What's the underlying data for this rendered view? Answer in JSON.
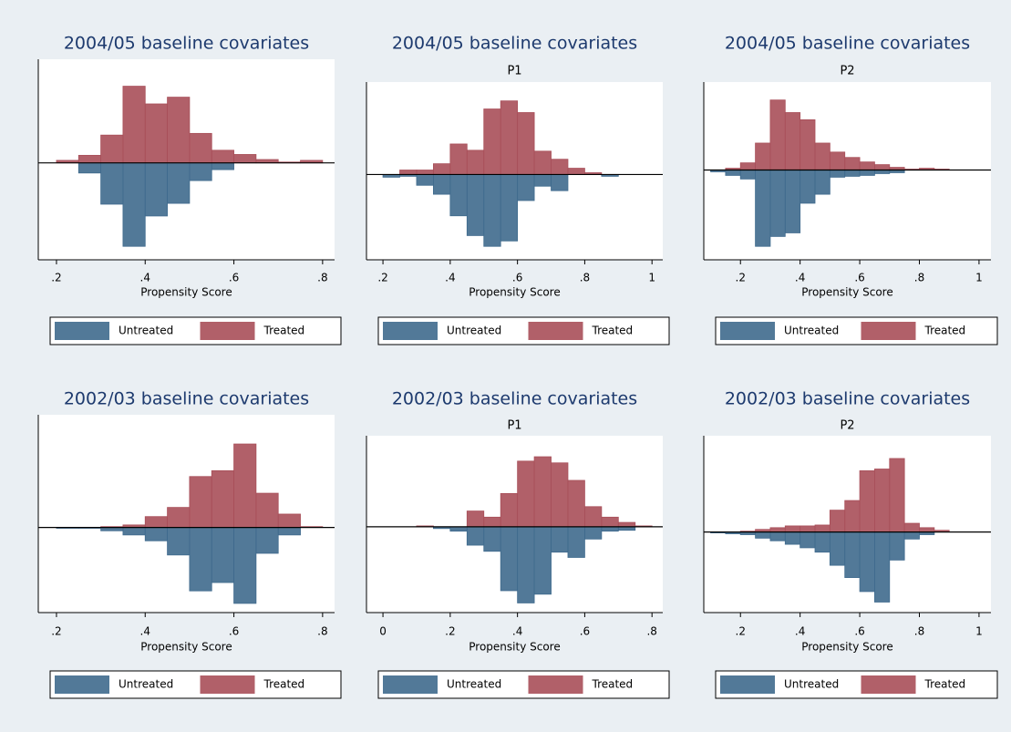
{
  "chart_data": [
    {
      "type": "histogram",
      "title": "2004/05 baseline covariates",
      "x_label": "Propensity Score",
      "bins": [
        0.2,
        0.25,
        0.3,
        0.35,
        0.4,
        0.45,
        0.5,
        0.55,
        0.6,
        0.65,
        0.7,
        0.75,
        0.8
      ],
      "series": [
        {
          "name": "Untreated",
          "color": "#3f6a8d",
          "values": [
            0,
            -12,
            -49,
            -99,
            -63,
            -48,
            -21,
            -8,
            0,
            0,
            0,
            0
          ]
        },
        {
          "name": "Treated",
          "color": "#a84f59",
          "values": [
            3,
            9,
            33,
            91,
            70,
            78,
            35,
            15,
            10,
            4,
            1,
            3
          ]
        }
      ],
      "xlim": [
        0.159,
        0.827
      ],
      "xticks": [
        {
          "value": 0.2,
          "label": ".2"
        },
        {
          "value": 0.4,
          "label": ".4"
        },
        {
          "value": 0.6,
          "label": ".6"
        },
        {
          "value": 0.8,
          "label": ".8"
        }
      ],
      "ylim": [
        -115,
        123
      ]
    },
    {
      "type": "histogram",
      "title": "2004/05 baseline covariates",
      "subtitle": "P1",
      "x_label": "Propensity Score",
      "bins": [
        0.2,
        0.25,
        0.3,
        0.35,
        0.4,
        0.45,
        0.5,
        0.55,
        0.6,
        0.65,
        0.7,
        0.75,
        0.8,
        0.85,
        0.9
      ],
      "series": [
        {
          "name": "Untreated",
          "color": "#3f6a8d",
          "values": [
            -3,
            -2,
            -12,
            -22,
            -46,
            -68,
            -80,
            -74,
            -29,
            -13,
            -18,
            0,
            0,
            -2
          ]
        },
        {
          "name": "Treated",
          "color": "#a84f59",
          "values": [
            0,
            5,
            5,
            12,
            34,
            27,
            73,
            82,
            69,
            26,
            17,
            7,
            2,
            0
          ]
        }
      ],
      "xlim": [
        0.151,
        1.032
      ],
      "xticks": [
        {
          "value": 0.2,
          "label": ".2"
        },
        {
          "value": 0.4,
          "label": ".4"
        },
        {
          "value": 0.6,
          "label": ".6"
        },
        {
          "value": 0.8,
          "label": ".8"
        },
        1
      ],
      "ylim": [
        -95,
        103
      ]
    },
    {
      "type": "histogram",
      "title": "2004/05 baseline covariates",
      "subtitle": "P2",
      "x_label": "Propensity Score",
      "bins": [
        0.1,
        0.15,
        0.2,
        0.25,
        0.3,
        0.35,
        0.4,
        0.45,
        0.5,
        0.55,
        0.6,
        0.65,
        0.7,
        0.75,
        0.8,
        0.85,
        0.9
      ],
      "series": [
        {
          "name": "Untreated",
          "color": "#3f6a8d",
          "values": [
            -2,
            -6,
            -10,
            -85,
            -74,
            -70,
            -37,
            -27,
            -8,
            -7,
            -6,
            -4,
            -3,
            0,
            0,
            0
          ]
        },
        {
          "name": "Treated",
          "color": "#a84f59",
          "values": [
            0,
            2,
            8,
            30,
            78,
            64,
            56,
            30,
            20,
            14,
            9,
            6,
            3,
            1,
            2,
            1
          ]
        }
      ],
      "xlim": [
        0.077,
        1.04
      ],
      "xticks": [
        {
          "value": 0.2,
          "label": ".2"
        },
        {
          "value": 0.4,
          "label": ".4"
        },
        {
          "value": 0.6,
          "label": ".6"
        },
        {
          "value": 0.8,
          "label": ".8"
        },
        1
      ],
      "ylim": [
        -100,
        98
      ]
    },
    {
      "type": "histogram",
      "title": "2002/03 baseline covariates",
      "x_label": "Propensity Score",
      "bins": [
        0.2,
        0.25,
        0.3,
        0.35,
        0.4,
        0.45,
        0.5,
        0.55,
        0.6,
        0.65,
        0.7,
        0.75,
        0.8
      ],
      "series": [
        {
          "name": "Untreated",
          "color": "#3f6a8d",
          "values": [
            -1,
            -1,
            -4,
            -9,
            -16,
            -33,
            -76,
            -66,
            -91,
            -31,
            -9,
            0
          ]
        },
        {
          "name": "Treated",
          "color": "#a84f59",
          "values": [
            0,
            0,
            1,
            3,
            13,
            24,
            61,
            68,
            100,
            41,
            16,
            1
          ]
        }
      ],
      "xlim": [
        0.159,
        0.827
      ],
      "xticks": [
        {
          "value": 0.2,
          "label": ".2"
        },
        {
          "value": 0.4,
          "label": ".4"
        },
        {
          "value": 0.6,
          "label": ".6"
        },
        {
          "value": 0.8,
          "label": ".8"
        }
      ],
      "ylim": [
        -102,
        135
      ]
    },
    {
      "type": "histogram",
      "title": "2002/03 baseline covariates",
      "subtitle": "P1",
      "x_label": "Propensity Score",
      "bins": [
        0.1,
        0.15,
        0.2,
        0.25,
        0.3,
        0.35,
        0.4,
        0.45,
        0.5,
        0.55,
        0.6,
        0.65,
        0.7,
        0.75,
        0.8
      ],
      "series": [
        {
          "name": "Untreated",
          "color": "#3f6a8d",
          "values": [
            0,
            -2,
            -5,
            -21,
            -28,
            -73,
            -87,
            -77,
            -29,
            -35,
            -14,
            -5,
            -4,
            0
          ]
        },
        {
          "name": "Treated",
          "color": "#a84f59",
          "values": [
            1,
            0,
            0,
            18,
            11,
            38,
            75,
            80,
            73,
            53,
            23,
            11,
            5,
            1
          ]
        }
      ],
      "xlim": [
        -0.049,
        0.832
      ],
      "xticks": [
        0,
        {
          "value": 0.2,
          "label": ".2"
        },
        {
          "value": 0.4,
          "label": ".4"
        },
        {
          "value": 0.6,
          "label": ".6"
        },
        {
          "value": 0.8,
          "label": ".8"
        }
      ],
      "ylim": [
        -98,
        104
      ]
    },
    {
      "type": "histogram",
      "title": "2002/03 baseline covariates",
      "subtitle": "P2",
      "x_label": "Propensity Score",
      "bins": [
        0.1,
        0.15,
        0.2,
        0.25,
        0.3,
        0.35,
        0.4,
        0.45,
        0.5,
        0.55,
        0.6,
        0.65,
        0.7,
        0.75,
        0.8,
        0.85,
        0.9
      ],
      "series": [
        {
          "name": "Untreated",
          "color": "#3f6a8d",
          "values": [
            -1,
            -2,
            -3,
            -7,
            -10,
            -14,
            -18,
            -23,
            -38,
            -52,
            -68,
            -80,
            -32,
            -8,
            -3,
            0
          ]
        },
        {
          "name": "Treated",
          "color": "#a84f59",
          "values": [
            0,
            0,
            1,
            3,
            5,
            7,
            7,
            8,
            25,
            36,
            70,
            72,
            84,
            10,
            5,
            2
          ]
        }
      ],
      "xlim": [
        0.077,
        1.04
      ],
      "xticks": [
        {
          "value": 0.2,
          "label": ".2"
        },
        {
          "value": 0.4,
          "label": ".4"
        },
        {
          "value": 0.6,
          "label": ".6"
        },
        {
          "value": 0.8,
          "label": ".8"
        },
        1
      ],
      "ylim": [
        -92,
        110
      ]
    }
  ]
}
